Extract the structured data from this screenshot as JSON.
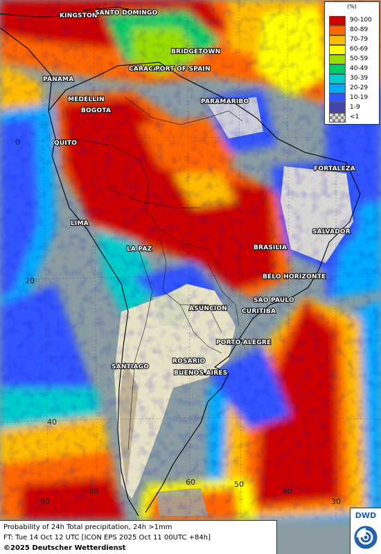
{
  "map": {
    "product": "Probability of 24h Total precipitation, 24h >1mm",
    "forecast_time": "FT: Tue 14 Oct 12 UTC [ICON EPS 2025 Oct 11 00UTC +84h]",
    "copyright": "©2025 Deutscher Wetterdienst",
    "logo_text": "DWD",
    "legend_unit": "(%)",
    "legend": [
      {
        "label": "90-100",
        "color": "#cc0000"
      },
      {
        "label": "80-89",
        "color": "#ff6600"
      },
      {
        "label": "70-79",
        "color": "#ffbb00"
      },
      {
        "label": "60-69",
        "color": "#ffff00"
      },
      {
        "label": "50-59",
        "color": "#99dd00"
      },
      {
        "label": "40-49",
        "color": "#00cc66"
      },
      {
        "label": "30-39",
        "color": "#00cccc"
      },
      {
        "label": "20-29",
        "color": "#00aaff"
      },
      {
        "label": "10-19",
        "color": "#3355ff"
      },
      {
        "label": "1-9",
        "color": "#4444aa"
      },
      {
        "label": "<1",
        "color": "checker"
      }
    ],
    "cities": [
      "KINGSTON",
      "SANTO DOMINGO",
      "BRIDGETOWN",
      "CARACAS",
      "PORT OF SPAIN",
      "PANAMA",
      "PARAMARIBO",
      "MEDELLIN",
      "BOGOTA",
      "QUITO",
      "FORTALEZA",
      "LIMA",
      "SALVADOR",
      "BRASILIA",
      "LA PAZ",
      "BELO HORIZONTE",
      "SAO PAULO",
      "ASUNCION",
      "CURITIBA",
      "PORTO ALEGRE",
      "ROSARIO",
      "SANTIAGO",
      "BUENOS AIRES"
    ],
    "grid_labels": [
      "0",
      "20",
      "40",
      "90",
      "80",
      "60",
      "50",
      "40",
      "30"
    ]
  }
}
